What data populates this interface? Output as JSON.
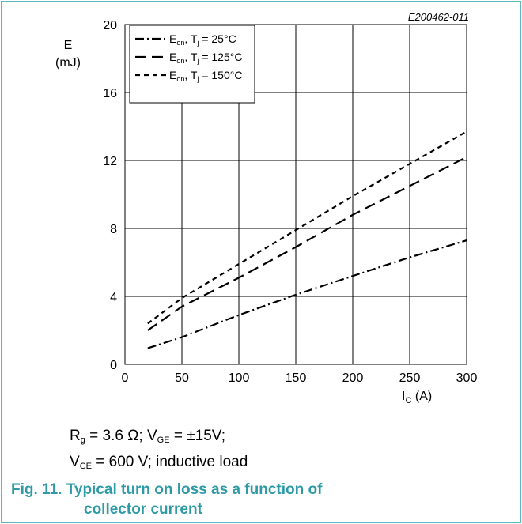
{
  "doc_id": "E200462-011",
  "chart_data": {
    "type": "line",
    "ylabel_symbol": "E",
    "ylabel_unit": "(mJ)",
    "xlabel_symbol": "I",
    "xlabel_sub": "C",
    "xlabel_unit": "(A)",
    "xlim": [
      0,
      300
    ],
    "ylim": [
      0,
      20
    ],
    "xticks": [
      0,
      50,
      100,
      150,
      200,
      250,
      300
    ],
    "yticks": [
      0,
      4,
      8,
      12,
      16,
      20
    ],
    "grid": true,
    "legend_position": "top-left",
    "series": [
      {
        "name_main": "E",
        "name_sub1": "on",
        "name_mid": ", T",
        "name_sub2": "j",
        "name_tail": " = 25°C",
        "dash": "dashdot",
        "x": [
          20,
          50,
          100,
          150,
          200,
          250,
          300
        ],
        "y": [
          0.95,
          1.6,
          2.9,
          4.1,
          5.2,
          6.3,
          7.3
        ]
      },
      {
        "name_main": "E",
        "name_sub1": "on",
        "name_mid": ", T",
        "name_sub2": "j",
        "name_tail": " = 125°C",
        "dash": "longdash",
        "x": [
          20,
          50,
          100,
          150,
          200,
          250,
          300
        ],
        "y": [
          2.0,
          3.4,
          5.1,
          6.9,
          8.8,
          10.5,
          12.2
        ]
      },
      {
        "name_main": "E",
        "name_sub1": "on",
        "name_mid": ", T",
        "name_sub2": "j",
        "name_tail": " = 150°C",
        "dash": "shortdash",
        "x": [
          20,
          50,
          100,
          150,
          200,
          250,
          300
        ],
        "y": [
          2.4,
          3.9,
          5.9,
          7.9,
          9.9,
          11.8,
          13.7
        ]
      }
    ]
  },
  "conditions": {
    "line1": {
      "rg_main": "R",
      "rg_sub": "g",
      "rg_rest": " = 3.6 Ω; V",
      "vge_sub": "GE",
      "vge_rest": " = ±15V;"
    },
    "line2": {
      "vce_main": "V",
      "vce_sub": "CE",
      "vce_rest": " = 600 V; inductive load"
    }
  },
  "caption": {
    "line1": "Fig. 11. Typical turn on loss as a function of",
    "line2": "collector current"
  }
}
